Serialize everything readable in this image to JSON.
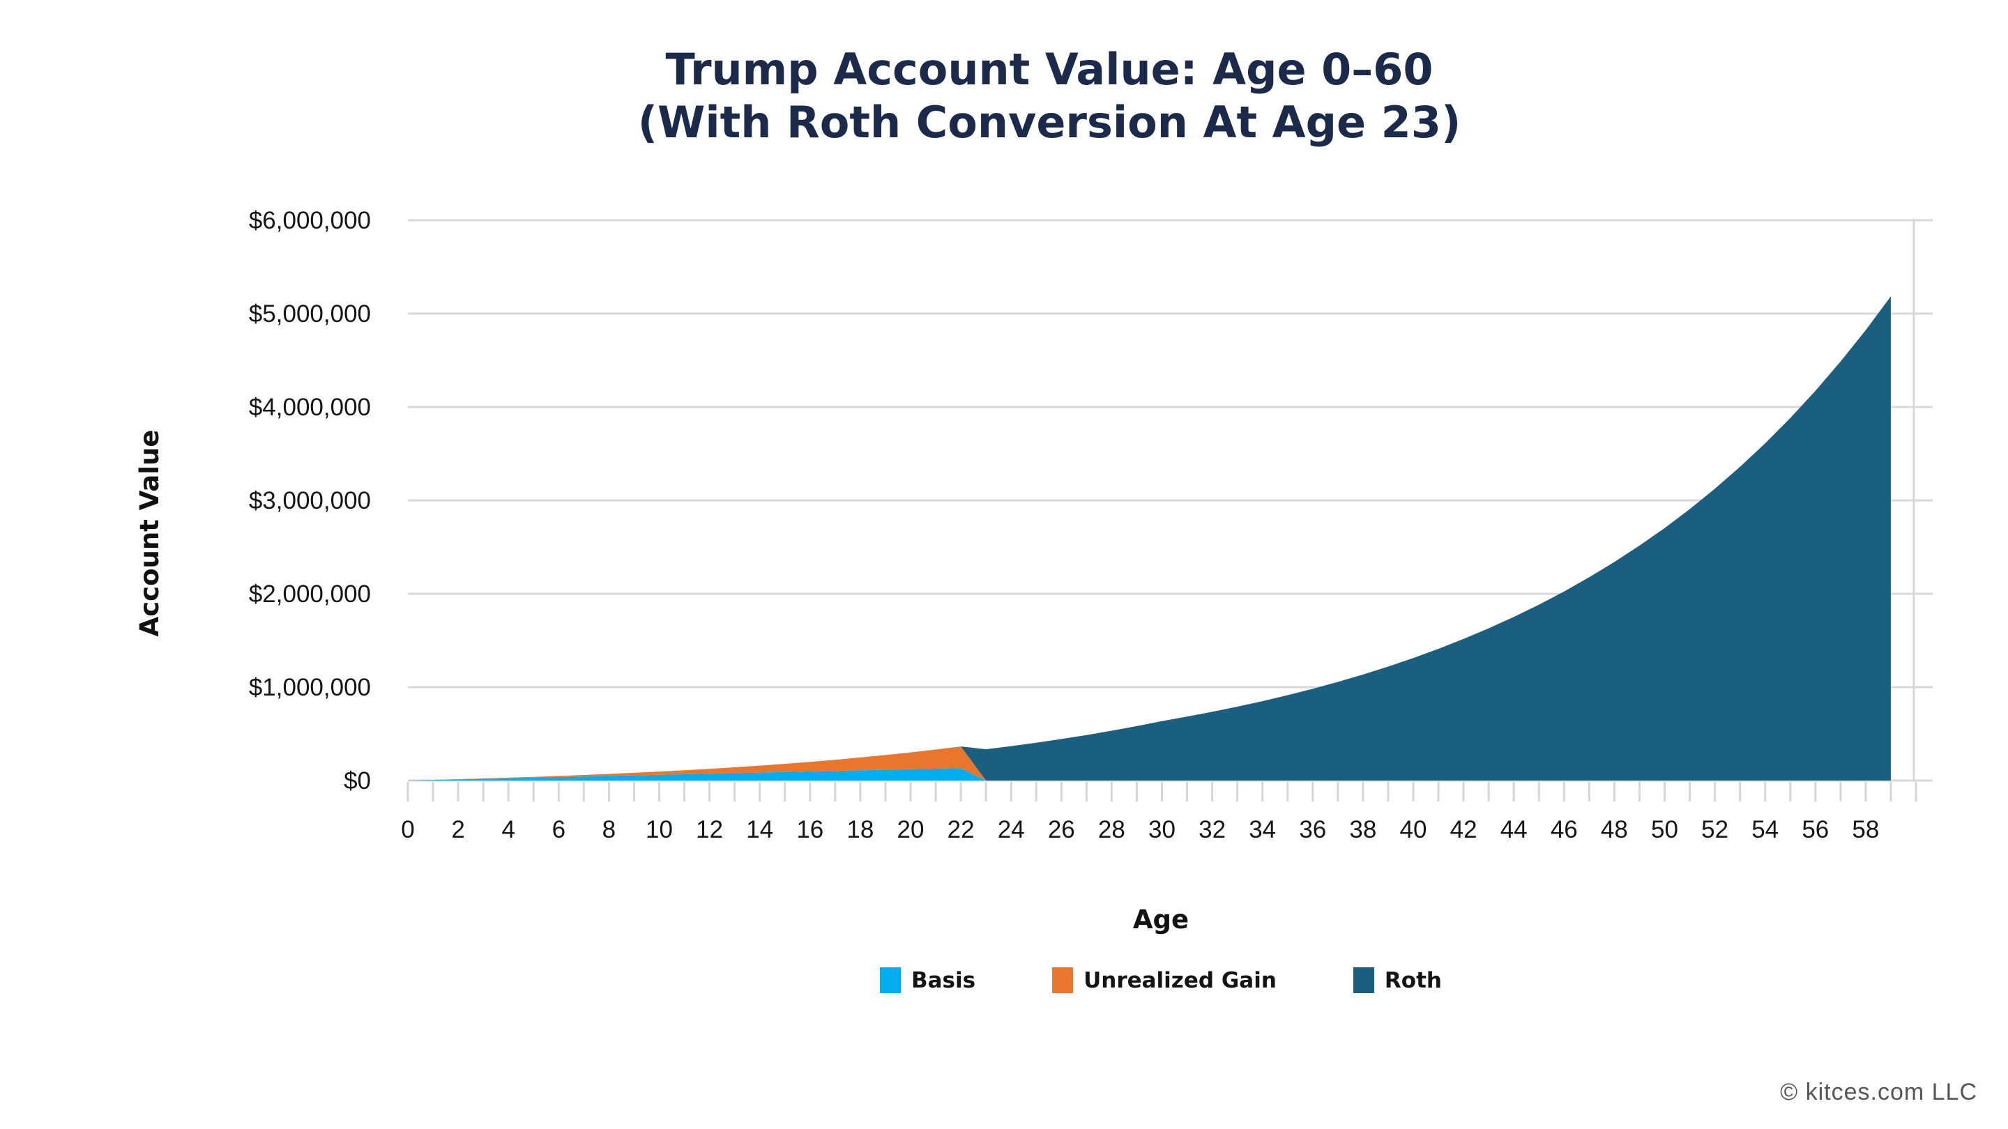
{
  "meta": {
    "title_line1": "Trump Account Value: Age 0–60",
    "title_line2": "(With Roth Conversion At Age 23)",
    "footer": "© kitces.com LLC"
  },
  "colors": {
    "title_navy": "#1b2a4a",
    "basis_blue": "#00aeef",
    "gain_orange": "#e8762f",
    "roth_teal": "#1a5f7f",
    "gridline_gray": "#d8d8d8",
    "tick_gray": "#d6d6d6",
    "footer_gray": "#55565a"
  },
  "chart_data": {
    "type": "area",
    "stacked": true,
    "title": "Trump Account Value: Age 0–60 (With Roth Conversion At Age 23)",
    "xlabel": "Age",
    "ylabel": "Account Value",
    "grid": true,
    "legend_position": "bottom",
    "xlim": [
      0,
      60
    ],
    "ylim": [
      0,
      6000000
    ],
    "x": [
      0,
      1,
      2,
      3,
      4,
      5,
      6,
      7,
      8,
      9,
      10,
      11,
      12,
      13,
      14,
      15,
      16,
      17,
      18,
      19,
      20,
      21,
      22,
      23,
      24,
      25,
      26,
      27,
      28,
      29,
      30,
      31,
      32,
      33,
      34,
      35,
      36,
      37,
      38,
      39,
      40,
      41,
      42,
      43,
      44,
      45,
      46,
      47,
      48,
      49,
      50,
      51,
      52,
      53,
      54,
      55,
      56,
      57,
      58,
      59
    ],
    "x_tick_labels": [
      "0",
      "2",
      "4",
      "6",
      "8",
      "10",
      "12",
      "14",
      "16",
      "18",
      "20",
      "22",
      "24",
      "26",
      "28",
      "30",
      "32",
      "34",
      "36",
      "38",
      "40",
      "42",
      "44",
      "46",
      "48",
      "50",
      "52",
      "54",
      "56",
      "58"
    ],
    "x_label_step": 2,
    "y_ticks": [
      0,
      1000000,
      2000000,
      3000000,
      4000000,
      5000000,
      6000000
    ],
    "y_tick_labels": [
      "$0",
      "$1,000,000",
      "$2,000,000",
      "$3,000,000",
      "$4,000,000",
      "$5,000,000",
      "$6,000,000"
    ],
    "series": [
      {
        "name": "Basis",
        "color": "#00aeef",
        "values": [
          1000,
          7000,
          13000,
          19000,
          25000,
          31000,
          37000,
          43000,
          49000,
          55000,
          61000,
          67000,
          73000,
          79000,
          85000,
          91000,
          97000,
          103000,
          109000,
          115000,
          121000,
          127000,
          133000,
          0,
          0,
          0,
          0,
          0,
          0,
          0,
          0,
          0,
          0,
          0,
          0,
          0,
          0,
          0,
          0,
          0,
          0,
          0,
          0,
          0,
          0,
          0,
          0,
          0,
          0,
          0,
          0,
          0,
          0,
          0,
          0,
          0,
          0,
          0,
          0,
          0
        ]
      },
      {
        "name": "Unrealized Gain",
        "color": "#e8762f",
        "values": [
          0,
          600,
          1600,
          3300,
          5600,
          8500,
          12100,
          16500,
          21800,
          27900,
          35000,
          43200,
          52500,
          63000,
          74900,
          88100,
          102900,
          119400,
          137700,
          157900,
          180200,
          204800,
          231800,
          0,
          0,
          0,
          0,
          0,
          0,
          0,
          0,
          0,
          0,
          0,
          0,
          0,
          0,
          0,
          0,
          0,
          0,
          0,
          0,
          0,
          0,
          0,
          0,
          0,
          0,
          0,
          0,
          0,
          0,
          0,
          0,
          0,
          0,
          0,
          0,
          0
        ]
      },
      {
        "name": "Roth",
        "color": "#1a5f7f",
        "values": [
          0,
          0,
          0,
          0,
          0,
          0,
          0,
          0,
          0,
          0,
          0,
          0,
          0,
          0,
          0,
          0,
          0,
          0,
          0,
          0,
          0,
          0,
          0,
          335000,
          368800,
          405300,
          444700,
          487300,
          533300,
          583000,
          636600,
          684300,
          735700,
          790800,
          850100,
          913900,
          982400,
          1056100,
          1135300,
          1220500,
          1312000,
          1410400,
          1516200,
          1629900,
          1752200,
          1883600,
          2024900,
          2176700,
          2340000,
          2515500,
          2704100,
          2906900,
          3125000,
          3359300,
          3611300,
          3882100,
          4173300,
          4486300,
          4822800,
          5184500
        ]
      }
    ]
  }
}
